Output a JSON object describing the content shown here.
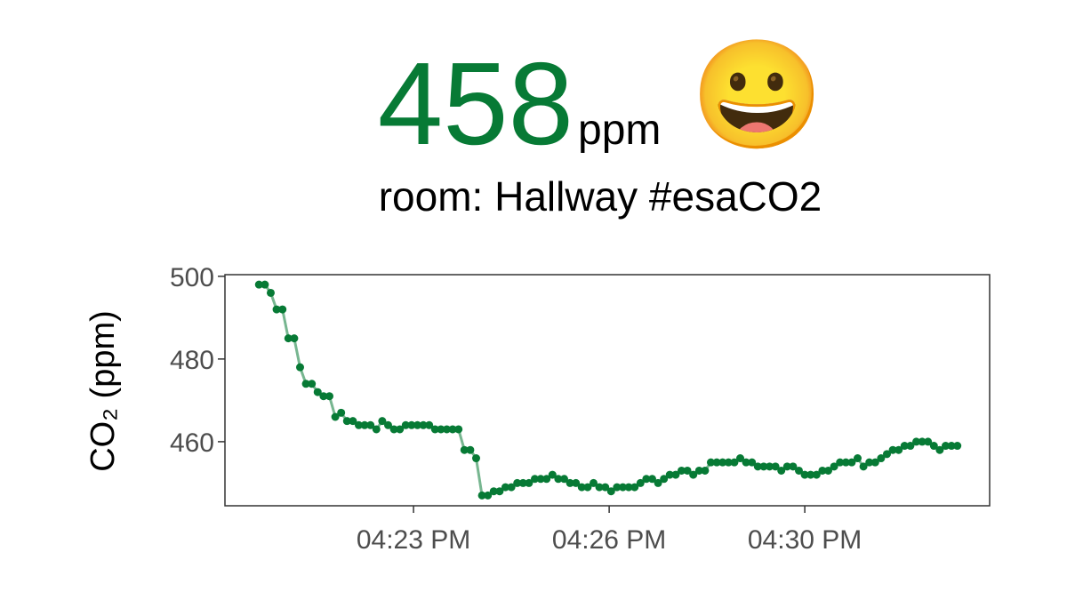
{
  "header": {
    "value": "458",
    "unit": "ppm",
    "emoji": "😀",
    "room": "room: Hallway #esaCO2"
  },
  "chart_data": {
    "type": "line",
    "y_label": "CO₂ (ppm)",
    "color": "#077a35",
    "x": [
      20.7,
      20.8,
      20.9,
      21.0,
      21.1,
      21.2,
      21.3,
      21.4,
      21.5,
      21.6,
      21.7,
      21.8,
      21.9,
      22.0,
      22.1,
      22.2,
      22.3,
      22.4,
      22.5,
      22.6,
      22.7,
      22.8,
      22.9,
      23.0,
      23.1,
      23.2,
      23.3,
      23.4,
      23.5,
      23.6,
      23.7,
      23.8,
      23.9,
      24.0,
      24.1,
      24.2,
      24.3,
      24.4,
      24.5,
      24.6,
      24.7,
      24.8,
      24.9,
      25.0,
      25.1,
      25.2,
      25.3,
      25.4,
      25.5,
      25.6,
      25.7,
      25.8,
      25.9,
      26.0,
      26.1,
      26.2,
      26.3,
      26.4,
      26.5,
      26.6,
      26.7,
      26.8,
      26.9,
      27.0,
      27.1,
      27.2,
      27.3,
      27.4,
      27.5,
      27.6,
      27.7,
      27.8,
      27.9,
      28.0,
      28.1,
      28.2,
      28.3,
      28.4,
      28.5,
      28.6,
      28.7,
      28.8,
      28.9,
      29.0,
      29.1,
      29.2,
      29.3,
      29.4,
      29.5,
      29.6,
      29.7,
      29.8,
      29.9,
      30.0,
      30.1,
      30.2,
      30.3,
      30.4,
      30.5,
      30.6,
      30.7,
      30.8,
      30.9,
      31.0,
      31.1,
      31.2,
      31.3,
      31.4,
      31.5,
      31.6,
      31.7,
      31.8,
      31.9,
      32.0,
      32.1,
      32.2,
      32.3,
      32.4,
      32.5,
      32.6
    ],
    "values": [
      498,
      498,
      496,
      492,
      492,
      485,
      485,
      478,
      474,
      474,
      472,
      471,
      471,
      466,
      467,
      465,
      465,
      464,
      464,
      464,
      463,
      465,
      464,
      463,
      463,
      464,
      464,
      464,
      464,
      464,
      463,
      463,
      463,
      463,
      463,
      458,
      458,
      456,
      447,
      447,
      448,
      448,
      449,
      449,
      450,
      450,
      450,
      451,
      451,
      451,
      452,
      451,
      451,
      450,
      450,
      449,
      449,
      450,
      449,
      449,
      448,
      449,
      449,
      449,
      449,
      450,
      451,
      451,
      450,
      451,
      452,
      452,
      453,
      453,
      452,
      453,
      453,
      455,
      455,
      455,
      455,
      455,
      456,
      455,
      455,
      454,
      454,
      454,
      454,
      453,
      454,
      454,
      453,
      452,
      452,
      452,
      453,
      453,
      454,
      455,
      455,
      455,
      456,
      454,
      455,
      455,
      456,
      457,
      458,
      458,
      459,
      459,
      460,
      460,
      460,
      459,
      458,
      459,
      459,
      459
    ],
    "xlim": [
      20.12,
      33.15
    ],
    "xticks": [
      {
        "value": 23.333,
        "label": "04:23 PM"
      },
      {
        "value": 26.667,
        "label": "04:26 PM"
      },
      {
        "value": 30,
        "label": "04:30 PM"
      }
    ],
    "ylim": [
      444.5,
      500.4
    ],
    "yticks": [
      460,
      480,
      500
    ]
  }
}
